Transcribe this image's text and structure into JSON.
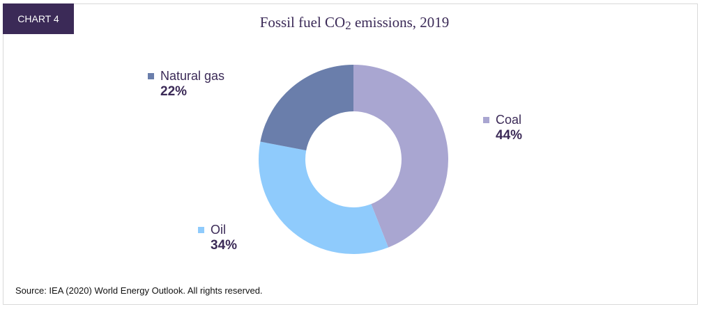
{
  "header": {
    "tag": "CHART 4"
  },
  "footer": {
    "source": "Source: IEA (2020) World Energy Outlook. All rights reserved."
  },
  "chart_data": {
    "type": "pie",
    "title": "Fossil fuel CO2 emissions, 2019",
    "subtype": "donut",
    "categories": [
      "Coal",
      "Oil",
      "Natural gas"
    ],
    "values": [
      44,
      34,
      22
    ],
    "labels": [
      "44%",
      "34%",
      "22%"
    ],
    "colors": [
      "#a9a6d1",
      "#8fcbfc",
      "#6a7eab"
    ]
  }
}
